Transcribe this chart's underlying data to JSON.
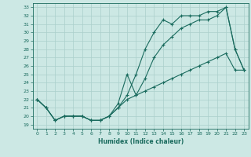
{
  "xlabel": "Humidex (Indice chaleur)",
  "bg_color": "#cce8e4",
  "line_color": "#1a6b5e",
  "grid_color": "#aacfcb",
  "xlim": [
    -0.5,
    23.5
  ],
  "ylim": [
    18.5,
    33.5
  ],
  "xticks": [
    0,
    1,
    2,
    3,
    4,
    5,
    6,
    7,
    8,
    9,
    10,
    11,
    12,
    13,
    14,
    15,
    16,
    17,
    18,
    19,
    20,
    21,
    22,
    23
  ],
  "yticks": [
    19,
    20,
    21,
    22,
    23,
    24,
    25,
    26,
    27,
    28,
    29,
    30,
    31,
    32,
    33
  ],
  "line1_x": [
    0,
    1,
    2,
    3,
    4,
    5,
    6,
    7,
    8,
    9,
    10,
    11,
    12,
    13,
    14,
    15,
    16,
    17,
    18,
    19,
    20,
    21,
    22,
    23
  ],
  "line1_y": [
    22.0,
    21.0,
    19.5,
    20.0,
    20.0,
    20.0,
    19.5,
    19.5,
    20.0,
    21.0,
    22.5,
    25.0,
    28.0,
    30.0,
    31.5,
    31.0,
    32.0,
    32.0,
    32.0,
    32.5,
    32.5,
    33.0,
    28.0,
    25.5
  ],
  "line2_x": [
    0,
    1,
    2,
    3,
    4,
    5,
    6,
    7,
    8,
    9,
    10,
    11,
    12,
    13,
    14,
    15,
    16,
    17,
    18,
    19,
    20,
    21,
    22,
    23
  ],
  "line2_y": [
    22.0,
    21.0,
    19.5,
    20.0,
    20.0,
    20.0,
    19.5,
    19.5,
    20.0,
    21.5,
    25.0,
    22.5,
    24.5,
    27.0,
    28.5,
    29.5,
    30.5,
    31.0,
    31.5,
    31.5,
    32.0,
    33.0,
    28.0,
    25.5
  ],
  "line3_x": [
    0,
    1,
    2,
    3,
    4,
    5,
    6,
    7,
    8,
    9,
    10,
    11,
    12,
    13,
    14,
    15,
    16,
    17,
    18,
    19,
    20,
    21,
    22,
    23
  ],
  "line3_y": [
    22.0,
    21.0,
    19.5,
    20.0,
    20.0,
    20.0,
    19.5,
    19.5,
    20.0,
    21.0,
    22.0,
    22.5,
    23.0,
    23.5,
    24.0,
    24.5,
    25.0,
    25.5,
    26.0,
    26.5,
    27.0,
    27.5,
    25.5,
    25.5
  ]
}
